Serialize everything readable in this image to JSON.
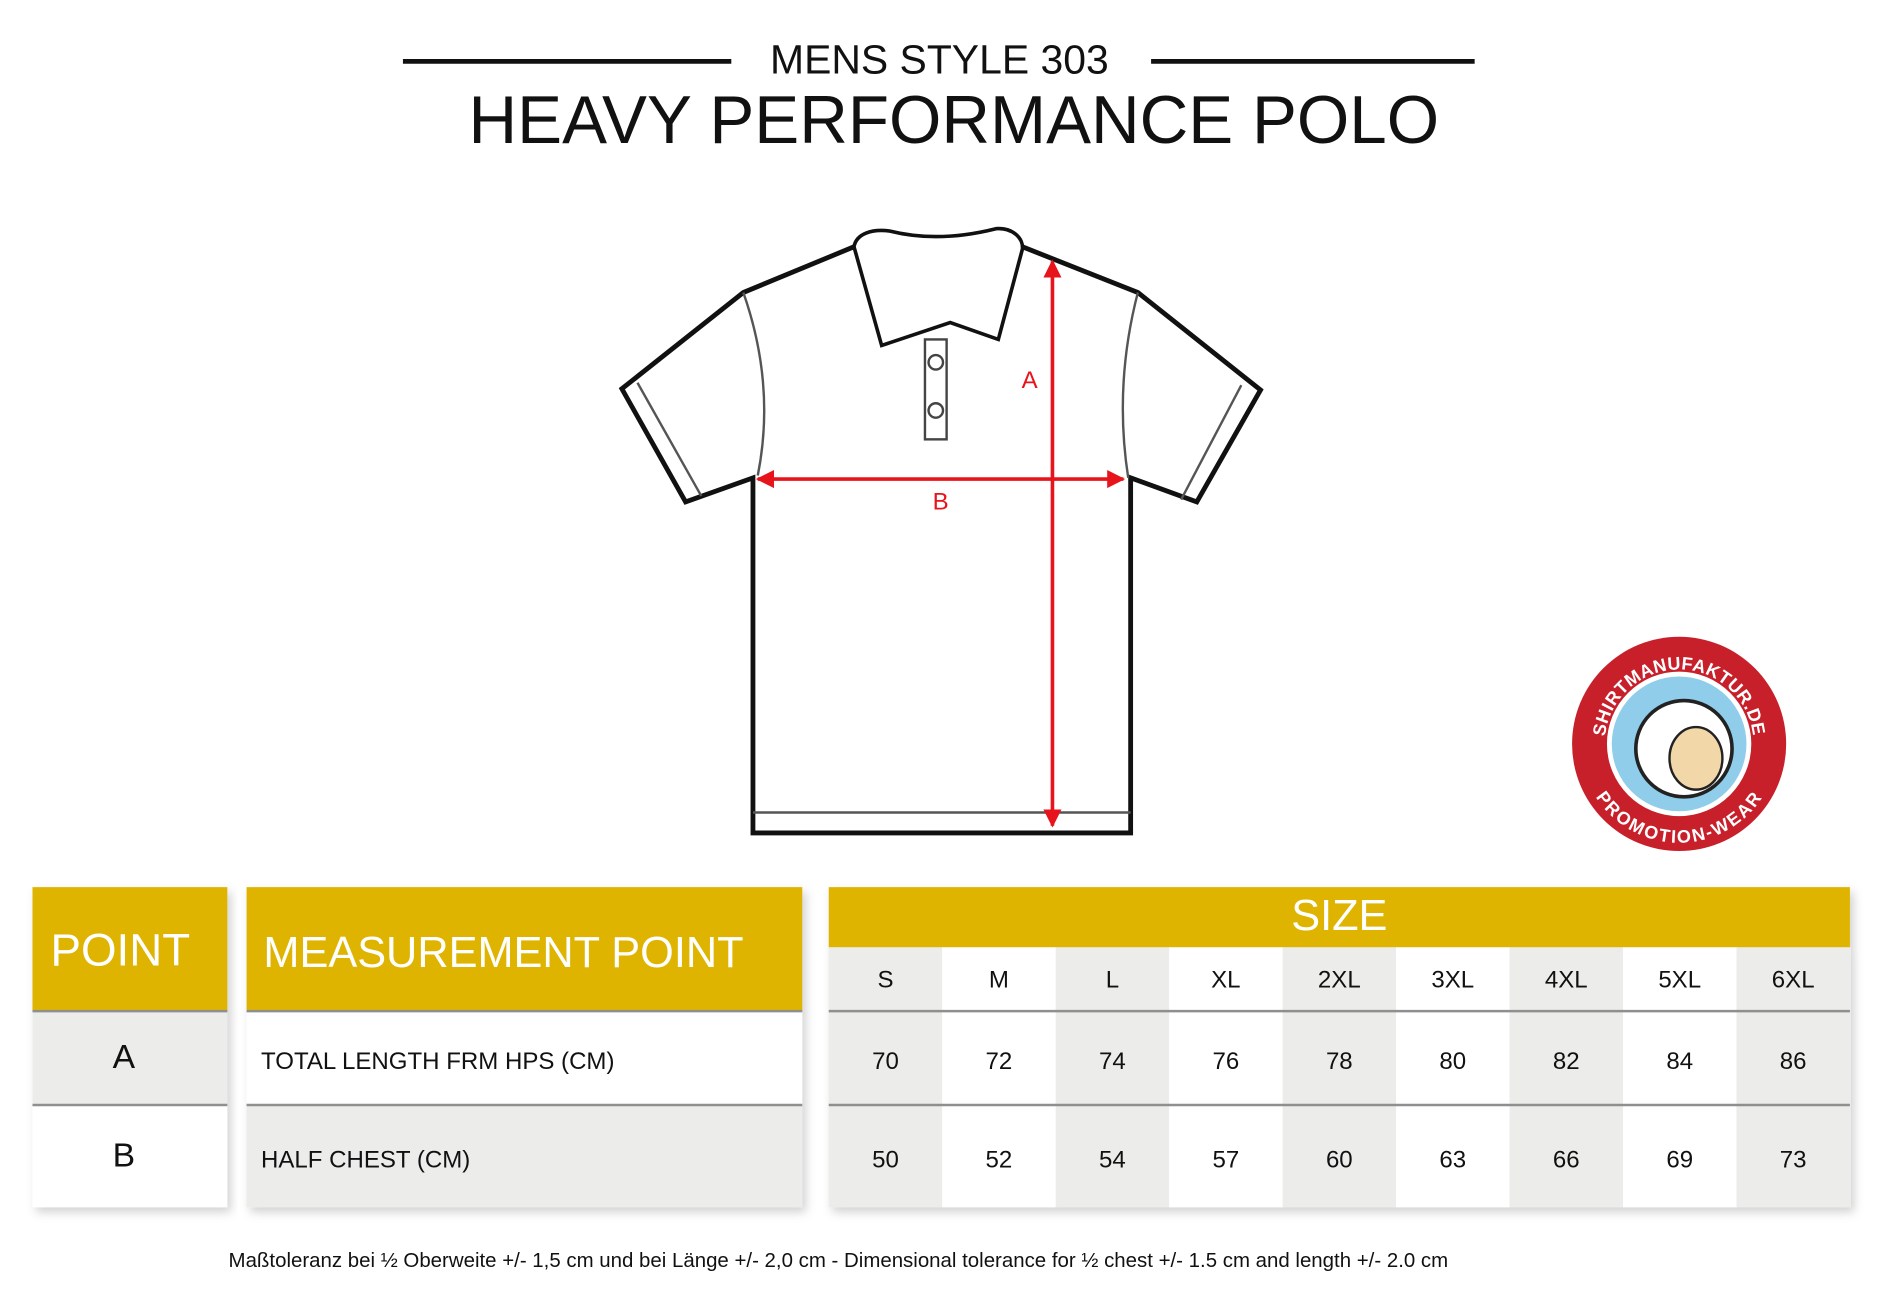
{
  "header": {
    "subtitle": "MENS STYLE 303",
    "title": "HEAVY PERFORMANCE POLO"
  },
  "diagram": {
    "label_a": "A",
    "label_b": "B"
  },
  "logo": {
    "top_text": "SHIRTMANUFAKTUR.DE",
    "bottom_text": "PROMOTION-WEAR"
  },
  "table": {
    "point_header": "POINT",
    "measurement_header": "MEASUREMENT POINT",
    "size_header": "SIZE",
    "sizes": [
      "S",
      "M",
      "L",
      "XL",
      "2XL",
      "3XL",
      "4XL",
      "5XL",
      "6XL"
    ],
    "rows": [
      {
        "point": "A",
        "measurement": "TOTAL LENGTH FRM HPS (CM)",
        "values": [
          70,
          72,
          74,
          76,
          78,
          80,
          82,
          84,
          86
        ]
      },
      {
        "point": "B",
        "measurement": "HALF CHEST (CM)",
        "values": [
          50,
          52,
          54,
          57,
          60,
          63,
          66,
          69,
          73
        ]
      }
    ]
  },
  "footer": {
    "note": "Maßtoleranz bei ½ Oberweite +/- 1,5 cm und bei Länge +/- 2,0 cm - Dimensional tolerance for ½ chest +/- 1.5 cm and length +/- 2.0 cm"
  }
}
